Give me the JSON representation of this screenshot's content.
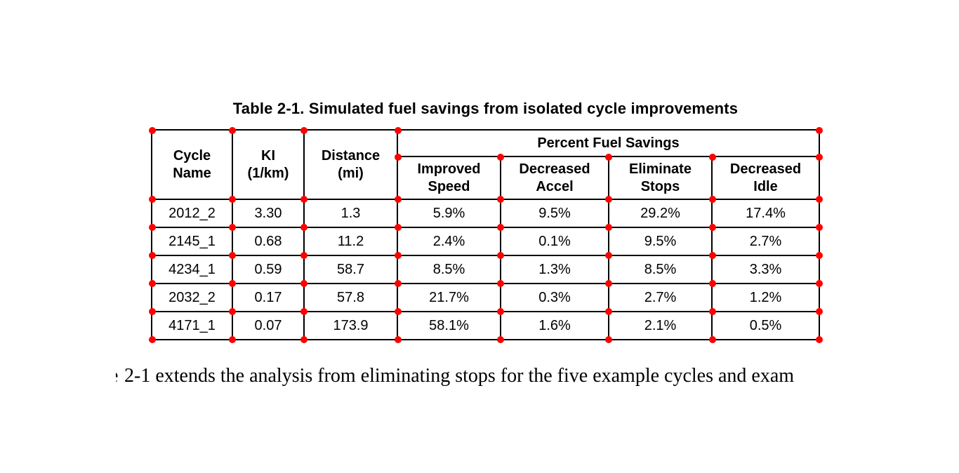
{
  "page": {
    "title": "Table 2-1. Simulated fuel savings from isolated cycle improvements",
    "caption_fragment": "e",
    "caption_text": "2-1 extends the analysis from eliminating stops for the five example cycles and exam"
  },
  "table": {
    "headers": {
      "cycle_name": "Cycle\nName",
      "ki": "KI\n(1/km)",
      "distance": "Distance\n(mi)",
      "group": "Percent Fuel Savings",
      "improved_speed": "Improved\nSpeed",
      "decreased_accel": "Decreased\nAccel",
      "eliminate_stops": "Eliminate\nStops",
      "decreased_idle": "Decreased\nIdle"
    },
    "rows": [
      [
        "2012_2",
        "3.30",
        "1.3",
        "5.9%",
        "9.5%",
        "29.2%",
        "17.4%"
      ],
      [
        "2145_1",
        "0.68",
        "11.2",
        "2.4%",
        "0.1%",
        "9.5%",
        "2.7%"
      ],
      [
        "4234_1",
        "0.59",
        "58.7",
        "8.5%",
        "1.3%",
        "8.5%",
        "3.3%"
      ],
      [
        "2032_2",
        "0.17",
        "57.8",
        "21.7%",
        "0.3%",
        "2.7%",
        "1.2%"
      ],
      [
        "4171_1",
        "0.07",
        "173.9",
        "58.1%",
        "1.6%",
        "2.1%",
        "0.5%"
      ]
    ]
  },
  "colors": {
    "dot": "#ff0000",
    "border": "#000000",
    "text": "#000000",
    "background": "#ffffff"
  }
}
